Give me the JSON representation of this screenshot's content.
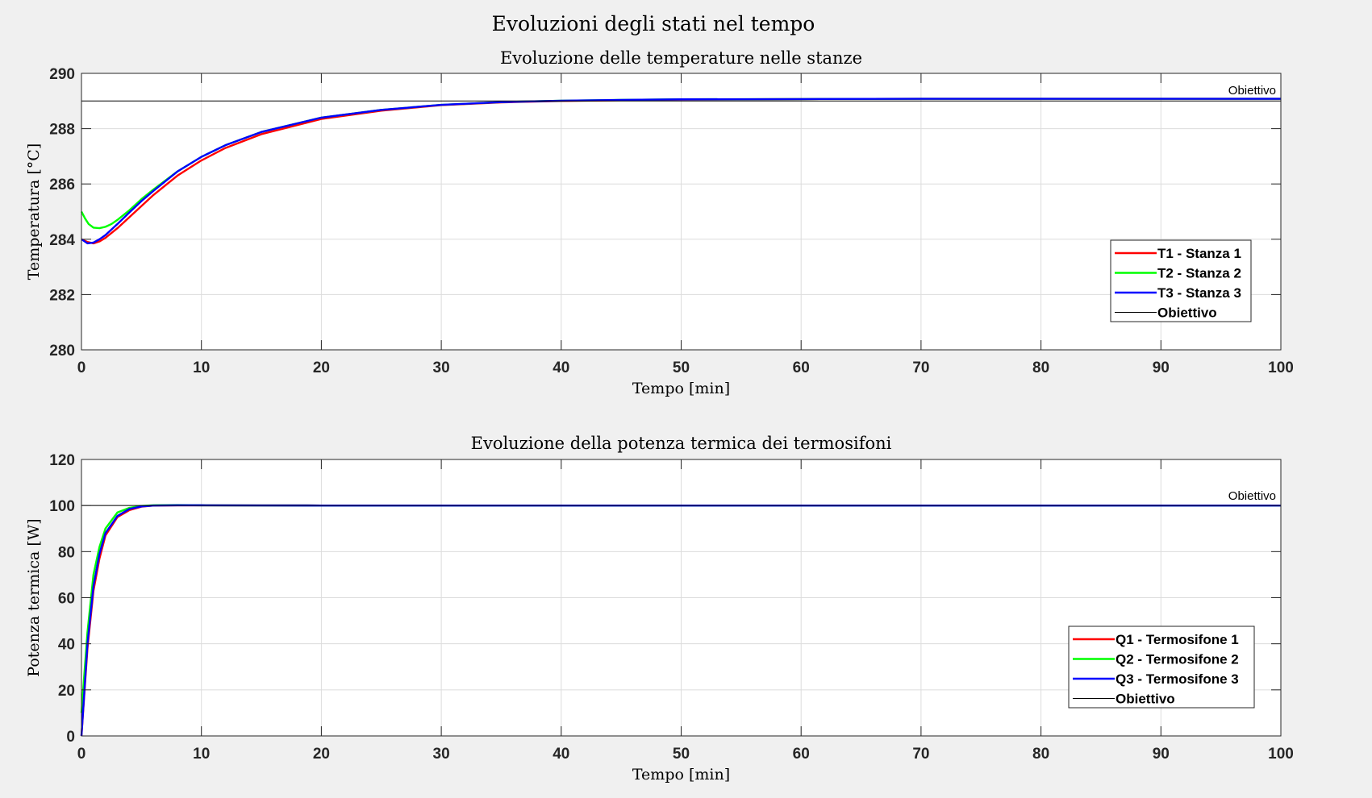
{
  "figure_title": "Evoluzioni degli stati nel tempo",
  "colors": {
    "T1": "#ff0000",
    "T2": "#00ff00",
    "T3": "#0000ff",
    "objective": "#000000",
    "grid": "#dcdcdc",
    "background": "#f0f0f0"
  },
  "chart_data": [
    {
      "type": "line",
      "title": "Evoluzione delle temperature nelle stanze",
      "xlabel": "Tempo [min]",
      "ylabel": "Temperatura [°C]",
      "xlim": [
        0,
        100
      ],
      "ylim": [
        280,
        290
      ],
      "xticks": [
        0,
        10,
        20,
        30,
        40,
        50,
        60,
        70,
        80,
        90,
        100
      ],
      "yticks": [
        280,
        282,
        284,
        286,
        288,
        290
      ],
      "grid": true,
      "legend_position": "right",
      "annotation": "Obiettivo",
      "series": [
        {
          "name": "T1 - Stanza 1",
          "color": "#ff0000",
          "x": [
            0,
            0.5,
            1,
            1.5,
            2,
            3,
            4,
            5,
            6,
            8,
            10,
            12,
            15,
            20,
            25,
            30,
            35,
            40,
            45,
            50,
            60,
            70,
            80,
            90,
            100
          ],
          "y": [
            284.0,
            283.9,
            283.85,
            283.92,
            284.05,
            284.4,
            284.8,
            285.2,
            285.6,
            286.3,
            286.85,
            287.3,
            287.8,
            288.35,
            288.65,
            288.85,
            288.95,
            289.0,
            289.03,
            289.05,
            289.07,
            289.08,
            289.08,
            289.08,
            289.08
          ]
        },
        {
          "name": "T2 - Stanza 2",
          "color": "#00ff00",
          "x": [
            0,
            0.3,
            0.6,
            1,
            1.5,
            2,
            2.5,
            3,
            4,
            5,
            6,
            8,
            10,
            12,
            15,
            20,
            25,
            30,
            35,
            40,
            45,
            50,
            60,
            70,
            80,
            90,
            100
          ],
          "y": [
            285.0,
            284.75,
            284.55,
            284.42,
            284.4,
            284.45,
            284.55,
            284.7,
            285.05,
            285.45,
            285.8,
            286.45,
            286.98,
            287.4,
            287.88,
            288.4,
            288.68,
            288.86,
            288.96,
            289.01,
            289.04,
            289.06,
            289.07,
            289.08,
            289.08,
            289.08,
            289.08
          ]
        },
        {
          "name": "T3 - Stanza 3",
          "color": "#0000ff",
          "x": [
            0,
            0.5,
            1,
            1.5,
            2,
            3,
            4,
            5,
            6,
            8,
            10,
            12,
            15,
            20,
            25,
            30,
            35,
            40,
            45,
            50,
            60,
            70,
            80,
            90,
            100
          ],
          "y": [
            284.0,
            283.85,
            283.88,
            284.0,
            284.15,
            284.55,
            284.97,
            285.38,
            285.75,
            286.45,
            286.98,
            287.4,
            287.88,
            288.4,
            288.68,
            288.86,
            288.96,
            289.01,
            289.04,
            289.06,
            289.07,
            289.08,
            289.08,
            289.08,
            289.08
          ]
        },
        {
          "name": "Obiettivo",
          "color": "#000000",
          "x": [
            0,
            100
          ],
          "y": [
            289.0,
            289.0
          ]
        }
      ]
    },
    {
      "type": "line",
      "title": "Evoluzione della potenza termica dei termosifoni",
      "xlabel": "Tempo [min]",
      "ylabel": "Potenza termica [W]",
      "xlim": [
        0,
        100
      ],
      "ylim": [
        0,
        120
      ],
      "xticks": [
        0,
        10,
        20,
        30,
        40,
        50,
        60,
        70,
        80,
        90,
        100
      ],
      "yticks": [
        0,
        20,
        40,
        60,
        80,
        100,
        120
      ],
      "grid": true,
      "legend_position": "right",
      "annotation": "Obiettivo",
      "series": [
        {
          "name": "Q1 - Termosifone 1",
          "color": "#ff0000",
          "x": [
            0,
            0.5,
            1,
            1.5,
            2,
            3,
            4,
            5,
            6,
            8,
            10,
            15,
            20,
            25,
            30,
            40,
            50,
            60,
            70,
            80,
            90,
            100
          ],
          "y": [
            0,
            38,
            63,
            77,
            87,
            95,
            98,
            99.5,
            100,
            100.1,
            100.1,
            100.05,
            100,
            100,
            100,
            100,
            100,
            100,
            100,
            100,
            100,
            100
          ]
        },
        {
          "name": "Q2 - Termosifone 2",
          "color": "#00ff00",
          "x": [
            0,
            0.5,
            1,
            1.5,
            2,
            3,
            4,
            5,
            6,
            8,
            10,
            15,
            20,
            25,
            30,
            40,
            50,
            60,
            70,
            80,
            90,
            100
          ],
          "y": [
            10,
            45,
            70,
            82,
            90,
            97,
            99,
            99.8,
            100.1,
            100.2,
            100.1,
            100.05,
            100,
            100,
            100,
            100,
            100,
            100,
            100,
            100,
            100,
            100
          ]
        },
        {
          "name": "Q3 - Termosifone 3",
          "color": "#0000ff",
          "x": [
            0,
            0.5,
            1,
            1.5,
            2,
            3,
            4,
            5,
            6,
            8,
            10,
            15,
            20,
            25,
            30,
            40,
            50,
            60,
            70,
            80,
            90,
            100
          ],
          "y": [
            0,
            40,
            65,
            79,
            88,
            95.5,
            98.5,
            99.6,
            100,
            100.1,
            100.1,
            100.05,
            100,
            100,
            100,
            100,
            100,
            100,
            100,
            100,
            100,
            100
          ]
        },
        {
          "name": "Obiettivo",
          "color": "#000000",
          "x": [
            0,
            100
          ],
          "y": [
            100,
            100
          ]
        }
      ]
    }
  ]
}
